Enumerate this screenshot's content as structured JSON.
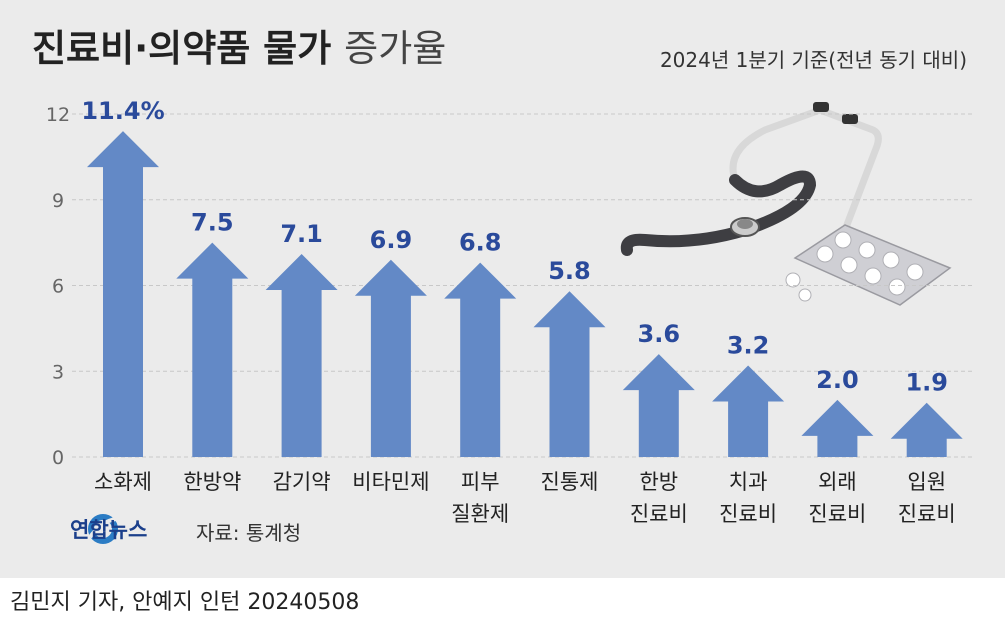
{
  "title": {
    "bold": "진료비·의약품 물가",
    "light": "증가율"
  },
  "subtitle": "2024년 1분기 기준(전년 동기 대비)",
  "source": "자료: 통계청",
  "logo_text": "연합뉴스",
  "byline": "김민지 기자, 안예지 인턴  20240508",
  "colors": {
    "bar": "#6389c6",
    "value_label": "#2a4a9b",
    "background": "#ebebeb",
    "grid": "#c8c8c8",
    "axis_text": "#666666"
  },
  "chart_data": {
    "type": "bar",
    "title": "진료비·의약품 물가 증가율",
    "subtitle": "2024년 1분기 기준(전년 동기 대비)",
    "categories": [
      "소화제",
      "한방약",
      "감기약",
      "비타민제",
      "피부\n질환제",
      "진통제",
      "한방\n진료비",
      "치과\n진료비",
      "외래\n진료비",
      "입원\n진료비"
    ],
    "values": [
      11.4,
      7.5,
      7.1,
      6.9,
      6.8,
      5.8,
      3.6,
      3.2,
      2.0,
      1.9
    ],
    "value_labels": [
      "11.4%",
      "7.5",
      "7.1",
      "6.9",
      "6.8",
      "5.8",
      "3.6",
      "3.2",
      "2.0",
      "1.9"
    ],
    "yticks": [
      "0",
      "3",
      "6",
      "9",
      "12"
    ],
    "ylim": [
      0,
      12
    ],
    "grid": true,
    "legend": "none",
    "bar_shape": "arrow-up",
    "xlabel": "",
    "ylabel": ""
  }
}
